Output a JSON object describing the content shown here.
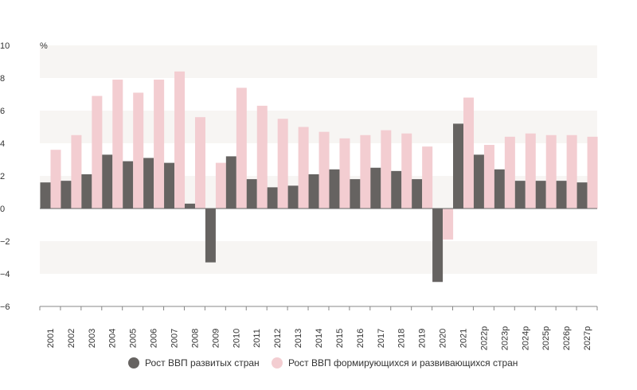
{
  "chart_data": {
    "type": "bar",
    "unit_label": "%",
    "categories": [
      "2001",
      "2002",
      "2003",
      "2004",
      "2005",
      "2006",
      "2007",
      "2008",
      "2009",
      "2010",
      "2011",
      "2012",
      "2013",
      "2014",
      "2015",
      "2016",
      "2017",
      "2018",
      "2019",
      "2020",
      "2021",
      "2022р",
      "2023р",
      "2024р",
      "2025р",
      "2026р",
      "2027р"
    ],
    "series": [
      {
        "name": "Рост ВВП развитых стран",
        "color": "#666361",
        "values": [
          1.6,
          1.7,
          2.1,
          3.3,
          2.9,
          3.1,
          2.8,
          0.3,
          -3.3,
          3.2,
          1.8,
          1.3,
          1.4,
          2.1,
          2.4,
          1.8,
          2.5,
          2.3,
          1.8,
          -4.5,
          5.2,
          3.3,
          2.4,
          1.7,
          1.7,
          1.7,
          1.6
        ]
      },
      {
        "name": "Рост ВВП формирующихся и развивающихся стран",
        "color": "#f3cdd1",
        "values": [
          3.6,
          4.5,
          6.9,
          7.9,
          7.1,
          7.9,
          8.4,
          5.6,
          2.8,
          7.4,
          6.3,
          5.5,
          5.0,
          4.7,
          4.3,
          4.5,
          4.8,
          4.6,
          3.8,
          -1.9,
          6.8,
          3.9,
          4.4,
          4.6,
          4.5,
          4.5,
          4.4
        ]
      }
    ],
    "yticks": [
      10,
      8,
      6,
      4,
      2,
      0,
      -2,
      -4,
      -6
    ],
    "ylim": [
      -6,
      10
    ],
    "legend_position": "bottom"
  }
}
